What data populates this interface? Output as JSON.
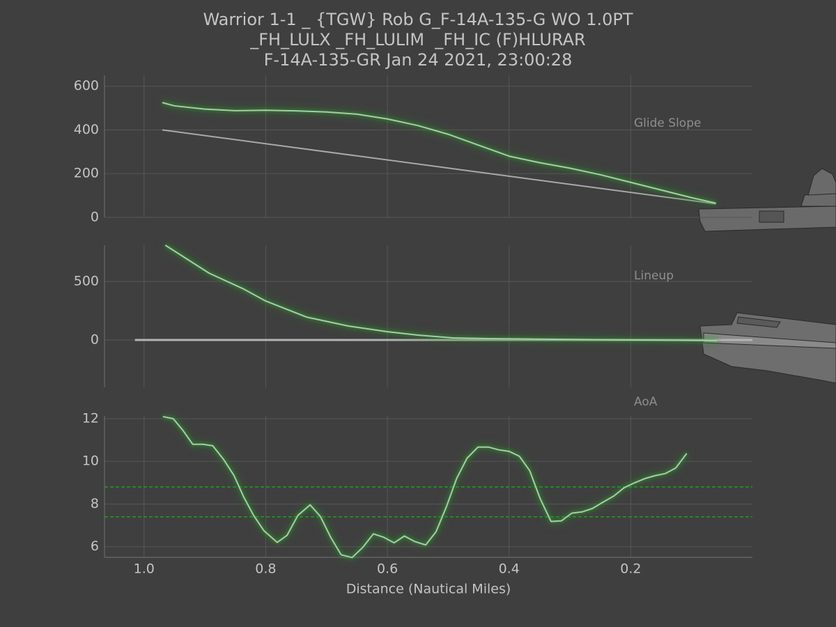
{
  "title": [
    "Warrior 1-1 _ {TGW} Rob G_F-14A-135-G WO 1.0PT",
    "_FH_LULX _FH_LULIM  _FH_IC (F)HLURAR",
    "F-14A-135-GR Jan 24 2021, 23:00:28"
  ],
  "x_label": "Distance (Nautical Miles)",
  "chart_data": [
    {
      "type": "line",
      "annotation": "Glide Slope",
      "xlim": [
        1.065,
        0
      ],
      "xticks": [
        1,
        0.8,
        0.6,
        0.4,
        0.2
      ],
      "ylim": [
        0,
        650
      ],
      "yticks": [
        0,
        200,
        400,
        600
      ],
      "grid": true,
      "series": [
        {
          "color": "#a9a9a9",
          "x": [
            0.97,
            0.06
          ],
          "values": [
            400,
            62
          ]
        },
        {
          "color": "#9fd29f",
          "glow": true,
          "x": [
            0.97,
            0.95,
            0.9,
            0.85,
            0.8,
            0.75,
            0.7,
            0.65,
            0.6,
            0.55,
            0.5,
            0.45,
            0.4,
            0.35,
            0.3,
            0.25,
            0.2,
            0.15,
            0.1,
            0.06
          ],
          "values": [
            525,
            510,
            495,
            488,
            490,
            487,
            482,
            472,
            450,
            420,
            380,
            330,
            280,
            250,
            225,
            195,
            160,
            125,
            90,
            65
          ]
        }
      ]
    },
    {
      "type": "line",
      "annotation": "Lineup",
      "xlim": [
        1.065,
        0
      ],
      "xticks": [
        1,
        0.8,
        0.6,
        0.4,
        0.2
      ],
      "ylim": [
        -405,
        810
      ],
      "yticks": [
        0,
        500
      ],
      "grid": true,
      "series": [
        {
          "color": "#b4b4b4",
          "width": 3,
          "x": [
            1.015,
            0
          ],
          "values": [
            0,
            0
          ]
        },
        {
          "color": "#9fd29f",
          "glow": true,
          "x": [
            0.965,
            0.893,
            0.836,
            0.8,
            0.733,
            0.664,
            0.6,
            0.55,
            0.493,
            0.436,
            0.321,
            0.058
          ],
          "values": [
            810,
            571,
            435,
            333,
            196,
            119,
            71,
            42,
            18,
            12,
            6,
            -6
          ]
        }
      ]
    },
    {
      "type": "line",
      "annotation": "AoA",
      "xlim": [
        1.065,
        0
      ],
      "xticks": [
        {
          "value": 1,
          "label": "1.0"
        },
        0.8,
        0.6,
        0.4,
        0.2
      ],
      "ylim": [
        5.5,
        12.13
      ],
      "yticks": [
        6,
        8,
        10,
        12
      ],
      "grid": true,
      "reference_lines": [
        8.8,
        7.4
      ],
      "reference_color": "#1f9a1f",
      "series": [
        {
          "color": "#9fd29f",
          "glow": true,
          "x": [
            0.969,
            0.952,
            0.936,
            0.92,
            0.903,
            0.887,
            0.869,
            0.852,
            0.836,
            0.82,
            0.803,
            0.781,
            0.765,
            0.747,
            0.727,
            0.71,
            0.693,
            0.676,
            0.658,
            0.64,
            0.623,
            0.606,
            0.589,
            0.572,
            0.555,
            0.537,
            0.52,
            0.503,
            0.486,
            0.469,
            0.451,
            0.434,
            0.417,
            0.4,
            0.383,
            0.366,
            0.349,
            0.331,
            0.314,
            0.297,
            0.28,
            0.263,
            0.246,
            0.228,
            0.211,
            0.194,
            0.177,
            0.16,
            0.143,
            0.126,
            0.108
          ],
          "values": [
            12.1,
            12.0,
            11.45,
            10.8,
            10.8,
            10.73,
            10.08,
            9.33,
            8.32,
            7.47,
            6.75,
            6.2,
            6.53,
            7.47,
            7.96,
            7.41,
            6.43,
            5.62,
            5.49,
            5.98,
            6.6,
            6.44,
            6.18,
            6.5,
            6.24,
            6.08,
            6.7,
            7.87,
            9.21,
            10.15,
            10.67,
            10.67,
            10.54,
            10.47,
            10.24,
            9.56,
            8.26,
            7.18,
            7.21,
            7.57,
            7.63,
            7.79,
            8.08,
            8.37,
            8.76,
            8.99,
            9.19,
            9.33,
            9.43,
            9.69,
            10.37
          ]
        }
      ]
    }
  ]
}
